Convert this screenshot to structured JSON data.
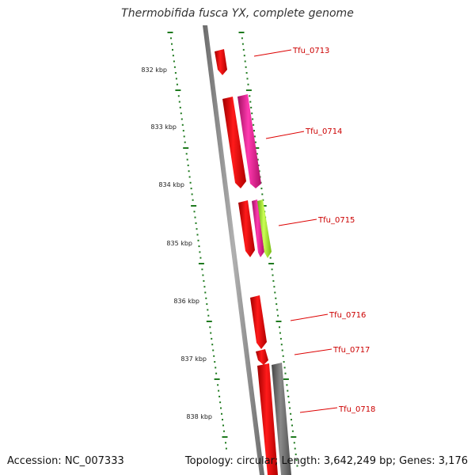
{
  "title": "Thermobifida fusca YX, complete genome",
  "accession": "Accession: NC_007333",
  "topology": "Topology: circular; Length: 3,642,249 bp; Genes: 3,176",
  "ruler": {
    "labels": [
      "832 kbp",
      "833 kbp",
      "834 kbp",
      "835 kbp",
      "836 kbp",
      "837 kbp",
      "838 kbp"
    ]
  },
  "colors": {
    "backbone": "#7a7a7a",
    "tick": "#1f7a1f",
    "gene_label": "#cc0000",
    "leader_line": "#dd0000"
  },
  "genes": [
    {
      "label": "Tfu_0713"
    },
    {
      "label": "Tfu_0714"
    },
    {
      "label": "Tfu_0715"
    },
    {
      "label": "Tfu_0716"
    },
    {
      "label": "Tfu_0717"
    },
    {
      "label": "Tfu_0718"
    }
  ],
  "features": [
    {
      "name": "gene-0713",
      "color": "#ee0000"
    },
    {
      "name": "gene-0714",
      "color": "#ee0000"
    },
    {
      "name": "cds-0714",
      "color": "#e8158e"
    },
    {
      "name": "gene-0715",
      "color": "#ee0000"
    },
    {
      "name": "cds-0715",
      "color": "#e8158e"
    },
    {
      "name": "misc-0715",
      "color": "#99ee22"
    },
    {
      "name": "gene-0716",
      "color": "#ee0000"
    },
    {
      "name": "gene-0717",
      "color": "#ee0000"
    },
    {
      "name": "gene-0718",
      "color": "#ee0000"
    },
    {
      "name": "pseudo-0718",
      "color": "#666666"
    }
  ]
}
